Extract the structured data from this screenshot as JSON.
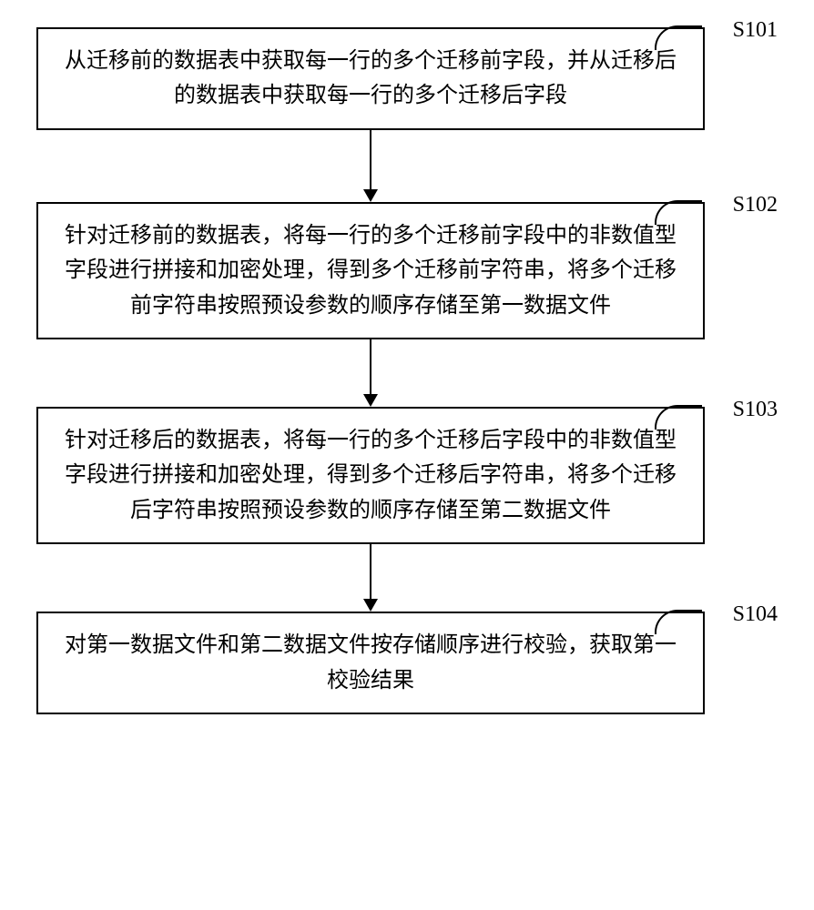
{
  "flowchart": {
    "type": "flowchart",
    "background_color": "#ffffff",
    "border_color": "#000000",
    "border_width": 2,
    "text_color": "#000000",
    "font_size": 24,
    "line_height": 1.6,
    "box_padding": "16px 24px",
    "label_font_family": "Times New Roman",
    "arrow_color": "#000000",
    "arrow_head_size": 14,
    "steps": [
      {
        "id": "S101",
        "text": "从迁移前的数据表中获取每一行的多个迁移前字段，并从迁移后的数据表中获取每一行的多个迁移后字段",
        "arrow_after_height": 65
      },
      {
        "id": "S102",
        "text": "针对迁移前的数据表，将每一行的多个迁移前字段中的非数值型字段进行拼接和加密处理，得到多个迁移前字符串，将多个迁移前字符串按照预设参数的顺序存储至第一数据文件",
        "arrow_after_height": 60
      },
      {
        "id": "S103",
        "text": "针对迁移后的数据表，将每一行的多个迁移后字段中的非数值型字段进行拼接和加密处理，得到多个迁移后字符串，将多个迁移后字符串按照预设参数的顺序存储至第二数据文件",
        "arrow_after_height": 60
      },
      {
        "id": "S104",
        "text": "对第一数据文件和第二数据文件按存储顺序进行校验，获取第一校验结果",
        "arrow_after_height": 0
      }
    ]
  }
}
